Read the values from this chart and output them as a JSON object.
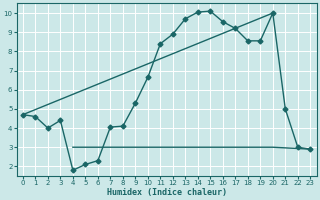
{
  "xlabel": "Humidex (Indice chaleur)",
  "xlim": [
    -0.5,
    23.5
  ],
  "ylim": [
    1.5,
    10.5
  ],
  "bg_color": "#cce8e8",
  "grid_color": "#b0d4d4",
  "line_color": "#1a6666",
  "xticks": [
    0,
    1,
    2,
    3,
    4,
    5,
    6,
    7,
    8,
    9,
    10,
    11,
    12,
    13,
    14,
    15,
    16,
    17,
    18,
    19,
    20,
    21,
    22,
    23
  ],
  "yticks": [
    2,
    3,
    4,
    5,
    6,
    7,
    8,
    9,
    10
  ],
  "line1_x": [
    0,
    1,
    2,
    3,
    4,
    5,
    6,
    7,
    8,
    9,
    10,
    11,
    12,
    13,
    14,
    15,
    16,
    17,
    18,
    19,
    20,
    21,
    22,
    23
  ],
  "line1_y": [
    4.7,
    4.6,
    4.0,
    4.4,
    1.8,
    2.1,
    2.3,
    4.05,
    4.1,
    5.3,
    6.65,
    8.4,
    8.9,
    9.7,
    10.05,
    10.1,
    9.55,
    9.2,
    8.55,
    8.55,
    10.0,
    5.0,
    3.0,
    2.9
  ],
  "line2_x": [
    0,
    20
  ],
  "line2_y": [
    4.7,
    10.0
  ],
  "line3_x": [
    4,
    20,
    23
  ],
  "line3_y": [
    3.0,
    3.0,
    2.9
  ],
  "markersize": 2.5,
  "linewidth": 1.0
}
